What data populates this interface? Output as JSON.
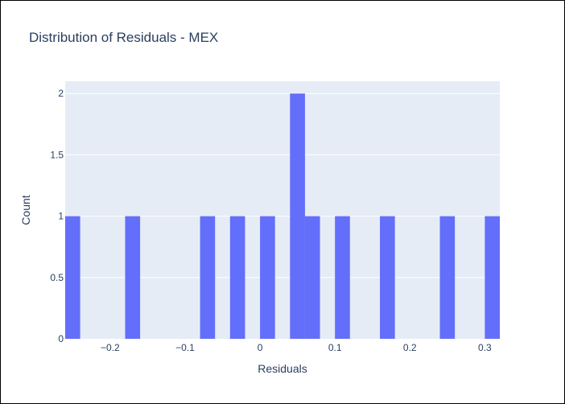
{
  "chart_data": {
    "type": "bar",
    "title": "Distribution of Residuals - MEX",
    "xlabel": "Residuals",
    "ylabel": "Count",
    "bin_width": 0.02,
    "bins": [
      {
        "x0": -0.26,
        "x1": -0.24,
        "count": 1
      },
      {
        "x0": -0.18,
        "x1": -0.16,
        "count": 1
      },
      {
        "x0": -0.08,
        "x1": -0.06,
        "count": 1
      },
      {
        "x0": -0.04,
        "x1": -0.02,
        "count": 1
      },
      {
        "x0": 0.0,
        "x1": 0.02,
        "count": 1
      },
      {
        "x0": 0.04,
        "x1": 0.06,
        "count": 2
      },
      {
        "x0": 0.06,
        "x1": 0.08,
        "count": 1
      },
      {
        "x0": 0.1,
        "x1": 0.12,
        "count": 1
      },
      {
        "x0": 0.16,
        "x1": 0.18,
        "count": 1
      },
      {
        "x0": 0.24,
        "x1": 0.26,
        "count": 1
      },
      {
        "x0": 0.3,
        "x1": 0.32,
        "count": 1
      }
    ],
    "xlim": [
      -0.26,
      0.32
    ],
    "ylim": [
      0,
      2.1
    ],
    "x_ticks": [
      {
        "value": -0.2,
        "label": "−0.2"
      },
      {
        "value": -0.1,
        "label": "−0.1"
      },
      {
        "value": 0,
        "label": "0"
      },
      {
        "value": 0.1,
        "label": "0.1"
      },
      {
        "value": 0.2,
        "label": "0.2"
      },
      {
        "value": 0.3,
        "label": "0.3"
      }
    ],
    "y_ticks": [
      {
        "value": 0,
        "label": "0"
      },
      {
        "value": 0.5,
        "label": "0.5"
      },
      {
        "value": 1,
        "label": "1"
      },
      {
        "value": 1.5,
        "label": "1.5"
      },
      {
        "value": 2,
        "label": "2"
      }
    ],
    "grid": true,
    "colors": {
      "bar": "#636efa",
      "plot_background": "#e5ecf6",
      "grid": "#ffffff",
      "text": "#2a3f5f"
    }
  }
}
